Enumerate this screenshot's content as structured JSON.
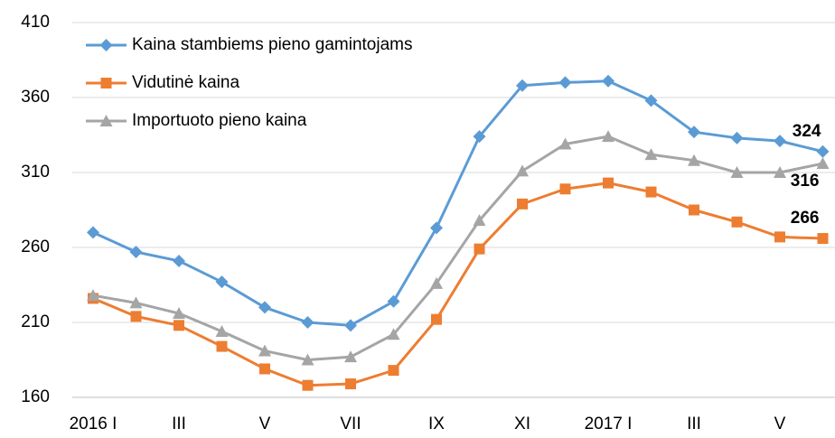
{
  "chart_data": {
    "type": "line",
    "categories": [
      "2016 I",
      null,
      "III",
      null,
      "V",
      null,
      "VII",
      null,
      "IX",
      null,
      "XI",
      null,
      "2017 I",
      null,
      "III",
      null,
      "V",
      null
    ],
    "series": [
      {
        "name": "Kaina stambiems pieno gamintojams",
        "color": "#5b9bd5",
        "marker": "diamond",
        "values": [
          270,
          257,
          251,
          237,
          220,
          210,
          208,
          224,
          273,
          334,
          368,
          370,
          371,
          358,
          337,
          333,
          331,
          324
        ],
        "value_labels": [
          null,
          null,
          null,
          null,
          null,
          null,
          null,
          null,
          null,
          null,
          null,
          null,
          null,
          null,
          null,
          null,
          null,
          324
        ]
      },
      {
        "name": "Vidutinė kaina",
        "color": "#ed7d31",
        "marker": "square",
        "values": [
          226,
          214,
          208,
          194,
          179,
          168,
          169,
          178,
          212,
          259,
          289,
          299,
          303,
          297,
          285,
          277,
          267,
          266
        ],
        "value_labels": [
          null,
          null,
          null,
          null,
          null,
          null,
          null,
          null,
          null,
          null,
          null,
          null,
          null,
          null,
          null,
          null,
          null,
          266
        ]
      },
      {
        "name": "Importuoto pieno kaina",
        "color": "#a5a5a5",
        "marker": "triangle",
        "values": [
          228,
          223,
          216,
          204,
          191,
          185,
          187,
          202,
          236,
          278,
          311,
          329,
          334,
          322,
          318,
          310,
          310,
          316
        ],
        "value_labels": [
          null,
          null,
          null,
          null,
          null,
          null,
          null,
          null,
          null,
          null,
          null,
          null,
          null,
          null,
          null,
          null,
          null,
          316
        ]
      }
    ],
    "ylim": [
      160,
      410
    ],
    "yticks": [
      160,
      210,
      260,
      310,
      360,
      410
    ],
    "grid": true
  }
}
